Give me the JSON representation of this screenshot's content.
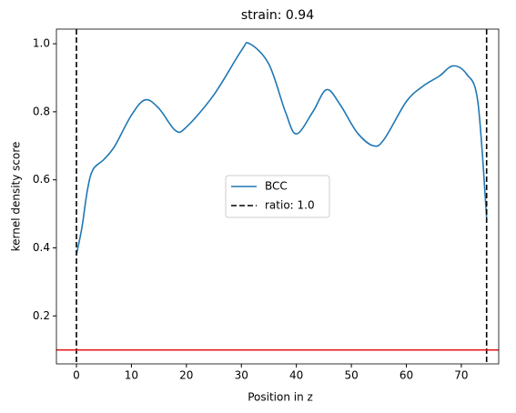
{
  "chart_data": {
    "type": "line",
    "title": "strain: 0.94",
    "xlabel": "Position in z",
    "ylabel": "kernel density score",
    "x": [
      0,
      1,
      2,
      3,
      5,
      7,
      10,
      12.5,
      15,
      18,
      20,
      25,
      30,
      31.5,
      35,
      38,
      40,
      43,
      45.5,
      48,
      51,
      54,
      56,
      60,
      63,
      66,
      68.5,
      71,
      73,
      74.6
    ],
    "series": [
      {
        "name": "BCC",
        "color": "#1f77b4",
        "values": [
          0.38,
          0.46,
          0.57,
          0.63,
          0.66,
          0.7,
          0.79,
          0.835,
          0.81,
          0.745,
          0.755,
          0.85,
          0.98,
          1.0,
          0.94,
          0.8,
          0.735,
          0.8,
          0.865,
          0.82,
          0.74,
          0.7,
          0.72,
          0.83,
          0.875,
          0.905,
          0.935,
          0.91,
          0.83,
          0.49
        ]
      }
    ],
    "vlines": {
      "name": "ratio: 1.0",
      "color": "#000000",
      "x": [
        0,
        74.6
      ]
    },
    "hline": {
      "color": "#e41a1c",
      "value": 0.1
    },
    "xlim": [
      -3.64,
      76.8
    ],
    "xticks": [
      0,
      10,
      20,
      30,
      40,
      50,
      60,
      70
    ],
    "ylim": [
      0.059,
      1.043
    ],
    "yticks": [
      0.2,
      0.4,
      0.6,
      0.8,
      {
        "value": 1,
        "label": "1.0"
      }
    ],
    "legend": "center"
  }
}
